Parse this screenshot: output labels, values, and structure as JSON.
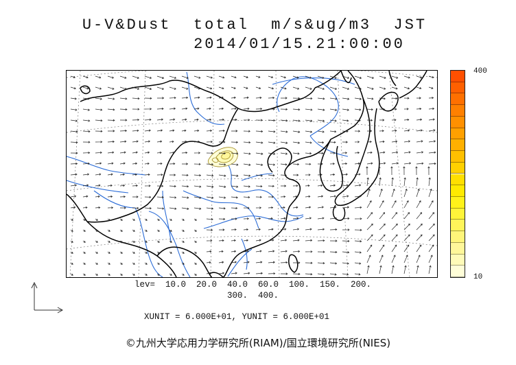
{
  "title": {
    "line1": "U-V&Dust  total  m/s&ug/m3  JST",
    "line2": "2014/01/15.21:00:00"
  },
  "colorbar": {
    "max_label": "400",
    "min_label": "10",
    "colors": [
      "#fffed8",
      "#fffbb8",
      "#fff79a",
      "#fff57a",
      "#fff55a",
      "#fff43a",
      "#fff21a",
      "#ffea00",
      "#ffdf00",
      "#ffd000",
      "#ffc000",
      "#ffb000",
      "#ffa000",
      "#ff9000",
      "#ff8000",
      "#ff7000",
      "#ff6000",
      "#ff5000"
    ]
  },
  "levels": {
    "line1": "lev=  10.0  20.0  40.0  60.0  100.  150.  200.",
    "line2": "300.  400."
  },
  "units": {
    "line": "XUNIT = 6.000E+01, YUNIT = 6.000E+01"
  },
  "credit": "©九州大学応用力学研究所(RIAM)/国立環境研究所(NIES)",
  "map": {
    "coastline_color": "#000000",
    "river_color": "#2a6bd6",
    "grid_color": "#777777",
    "vector_color": "#222222",
    "dust_contour_color": "#a08a20",
    "dust_fill_colors": [
      "#fffed8",
      "#fffbb8",
      "#fff79a"
    ]
  }
}
